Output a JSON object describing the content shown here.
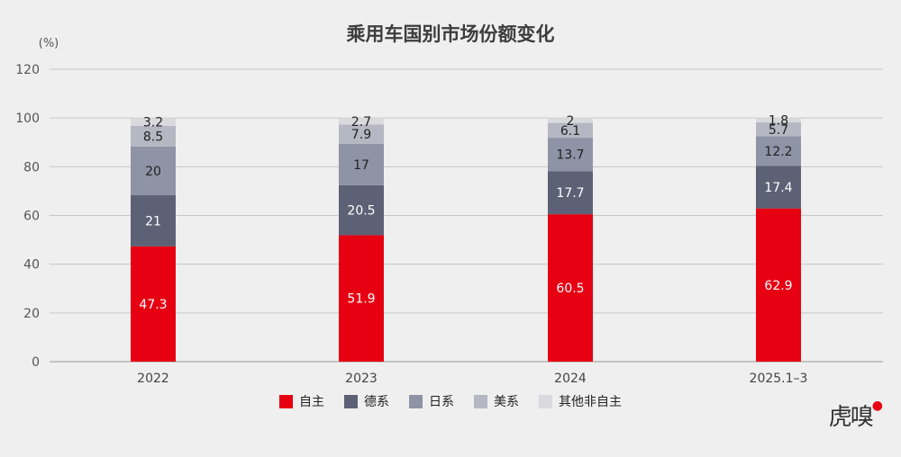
{
  "chart_data": {
    "type": "bar",
    "stacked": true,
    "title": "乘用车国别市场份额变化",
    "ylabel": "(%)",
    "ylim": [
      0,
      120
    ],
    "yticks": [
      0,
      20,
      40,
      60,
      80,
      100,
      120
    ],
    "grid": true,
    "legend_position": "bottom",
    "categories": [
      "2022",
      "2023",
      "2024",
      "2025.1–3"
    ],
    "series": [
      {
        "name": "自主",
        "color": "#e60012",
        "label_color": "#ffffff",
        "values": [
          47.3,
          51.9,
          60.5,
          62.9
        ]
      },
      {
        "name": "德系",
        "color": "#5d6175",
        "label_color": "#ffffff",
        "values": [
          21,
          20.5,
          17.7,
          17.4
        ]
      },
      {
        "name": "日系",
        "color": "#8f93a6",
        "label_color": "#222222",
        "values": [
          20,
          17,
          13.7,
          12.2
        ]
      },
      {
        "name": "美系",
        "color": "#b5b7c2",
        "label_color": "#222222",
        "values": [
          8.5,
          7.9,
          6.1,
          5.7
        ]
      },
      {
        "name": "其他非自主",
        "color": "#d9d9de",
        "label_color": "#222222",
        "values": [
          3.2,
          2.7,
          2,
          1.8
        ]
      }
    ]
  },
  "watermark": {
    "text": "虎嗅"
  }
}
